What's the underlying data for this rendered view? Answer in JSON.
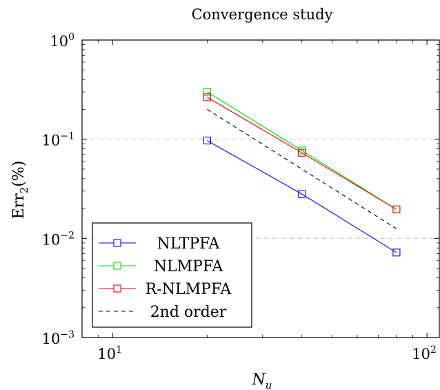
{
  "chart_data": {
    "type": "line",
    "title": "Convergence study",
    "xlabel": "N_u",
    "ylabel": "Err_2(%)",
    "xscale": "log",
    "yscale": "log",
    "xlim": [
      8,
      110
    ],
    "ylim": [
      0.001,
      1
    ],
    "x_major_ticks": [
      {
        "value": 10,
        "base": "10",
        "exp": "1"
      },
      {
        "value": 100,
        "base": "10",
        "exp": "2"
      }
    ],
    "y_major_ticks": [
      {
        "value": 1,
        "base": "10",
        "exp": "0"
      },
      {
        "value": 0.1,
        "base": "10",
        "exp": "−1"
      },
      {
        "value": 0.01,
        "base": "10",
        "exp": "−2"
      },
      {
        "value": 0.001,
        "base": "10",
        "exp": "−3"
      }
    ],
    "grid": "horizontal dashed at major y ticks",
    "legend_position": "bottom-left",
    "series": [
      {
        "name": "NLTPFA",
        "color": "#0000ff",
        "marker": "square",
        "style": "solid",
        "x": [
          20,
          40,
          80
        ],
        "y": [
          0.097,
          0.028,
          0.0072
        ]
      },
      {
        "name": "NLMPFA",
        "color": "#00dd00",
        "marker": "square",
        "style": "solid",
        "x": [
          20,
          40,
          80
        ],
        "y": [
          0.3,
          0.077,
          0.0196
        ]
      },
      {
        "name": "R-NLMPFA",
        "color": "#ee0000",
        "marker": "square",
        "style": "solid",
        "x": [
          20,
          40,
          80
        ],
        "y": [
          0.265,
          0.073,
          0.0196
        ]
      },
      {
        "name": "2nd order",
        "color": "#000000",
        "marker": "none",
        "style": "dashed",
        "x": [
          20,
          80
        ],
        "y": [
          0.2,
          0.0125
        ]
      }
    ]
  }
}
